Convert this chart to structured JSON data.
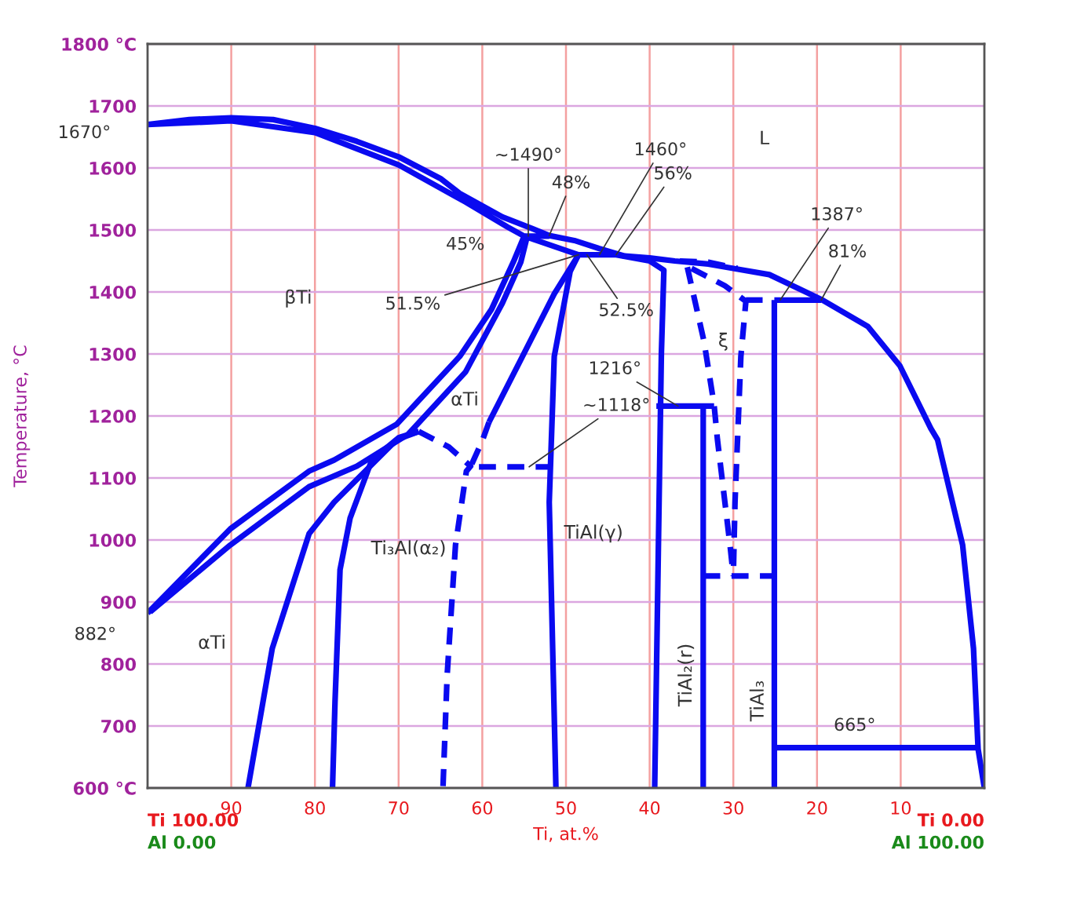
{
  "chart_data": {
    "type": "line",
    "xlabel": "Ti, at.%",
    "ylabel": "Temperature, °C",
    "xlim": [
      100,
      0
    ],
    "xticks": [
      90,
      80,
      70,
      60,
      50,
      40,
      30,
      20,
      10
    ],
    "ylim": [
      600,
      1800
    ],
    "yticks": [
      {
        "value": 600,
        "label": "600 °C"
      },
      700,
      800,
      900,
      1000,
      1100,
      1200,
      1300,
      1400,
      1500,
      1600,
      1700,
      {
        "value": 1800,
        "label": "1800 °C"
      }
    ],
    "grid": true,
    "legend": false,
    "marker": "none",
    "series": [
      {
        "color": "#0a0af0",
        "line_style": "solid",
        "x": [
          52,
          55,
          57,
          62,
          70,
          80,
          90,
          100,
          95,
          90,
          85,
          80,
          75,
          70,
          65,
          62.7,
          57.6,
          54,
          52,
          49,
          46,
          43,
          40,
          37,
          33,
          30,
          25.7,
          19.5,
          13.9,
          10.1,
          6.4,
          5.6,
          2.6,
          1.3,
          0.75,
          0
        ],
        "values": [
          1490,
          1490,
          1505,
          1545,
          1605,
          1657,
          1676,
          1670,
          1678,
          1681,
          1678,
          1664,
          1643,
          1618,
          1583,
          1559,
          1521,
          1502,
          1491,
          1483,
          1470,
          1458,
          1455,
          1450,
          1445,
          1438,
          1428,
          1388,
          1344,
          1281,
          1180,
          1162,
          992,
          825,
          663,
          600
        ]
      },
      {
        "color": "#0a0af0",
        "line_style": "solid",
        "x": [
          55,
          48.5
        ],
        "values": [
          1490,
          1460
        ]
      },
      {
        "color": "#0a0af0",
        "line_style": "solid",
        "x": [
          100,
          90.1,
          80.7,
          77.7,
          70.2,
          62.7,
          58.9,
          56.3,
          55
        ],
        "values": [
          882,
          1018,
          1111,
          1129,
          1187,
          1296,
          1372,
          1448,
          1490
        ]
      },
      {
        "color": "#0a0af0",
        "line_style": "solid",
        "x": [
          99.7,
          90.1,
          80.7,
          75,
          68.9,
          62,
          57.6,
          55.4,
          54.7
        ],
        "values": [
          884,
          992,
          1086,
          1119,
          1170,
          1271,
          1382,
          1448,
          1486
        ]
      },
      {
        "color": "#0a0af0",
        "line_style": "solid",
        "x": [
          67.6,
          70.2,
          77.7,
          80.7,
          85.1,
          88
        ],
        "values": [
          1175,
          1162,
          1061,
          1010,
          825,
          600
        ]
      },
      {
        "color": "#0a0af0",
        "line_style": "solid",
        "x": [
          67.6,
          70,
          73.2,
          75.8,
          77,
          77.6,
          77.9
        ],
        "values": [
          1175,
          1165,
          1129,
          1035,
          952,
          739,
          600
        ]
      },
      {
        "color": "#0a0af0",
        "line_style": "dashed",
        "x": [
          67.6,
          64,
          61.4,
          61.9,
          63.2,
          64.2,
          64.7
        ],
        "values": [
          1175,
          1150,
          1119,
          1111,
          992,
          782,
          600
        ]
      },
      {
        "color": "#0a0af0",
        "line_style": "dashed",
        "x": [
          59.2,
          60,
          61.4,
          52
        ],
        "values": [
          1190,
          1160,
          1118,
          1118
        ]
      },
      {
        "color": "#0a0af0",
        "line_style": "solid",
        "x": [
          59.2,
          55.2,
          51.4,
          48.5
        ],
        "values": [
          1190,
          1296,
          1397,
          1460
        ]
      },
      {
        "color": "#0a0af0",
        "line_style": "solid",
        "x": [
          51.2,
          52,
          51.4,
          49.5,
          48.5,
          44,
          40,
          38.3,
          38.6,
          39.4
        ],
        "values": [
          600,
          1061,
          1296,
          1433,
          1460,
          1460,
          1450,
          1435,
          1300,
          600
        ]
      },
      {
        "color": "#0a0af0",
        "line_style": "dashed",
        "x": [
          36.4,
          33,
          29.5
        ],
        "values": [
          1450,
          1448,
          1438
        ]
      },
      {
        "color": "#0a0af0",
        "line_style": "dashed",
        "x": [
          35.5,
          33.5,
          32.3,
          31.9,
          30.4,
          30
        ],
        "values": [
          1440,
          1320,
          1218,
          1162,
          992,
          942
        ]
      },
      {
        "color": "#0a0af0",
        "line_style": "dashed",
        "x": [
          35,
          31,
          28.5,
          29.1,
          29.8,
          30
        ],
        "values": [
          1438,
          1410,
          1385,
          1296,
          1061,
          942
        ]
      },
      {
        "color": "#0a0af0",
        "line_style": "dashed",
        "x": [
          33.6,
          25.1
        ],
        "values": [
          942,
          942
        ]
      },
      {
        "color": "#0a0af0",
        "line_style": "solid",
        "x": [
          39.2,
          32.3
        ],
        "values": [
          1216,
          1216
        ]
      },
      {
        "color": "#0a0af0",
        "line_style": "solid",
        "x": [
          33.6,
          33.6
        ],
        "values": [
          600,
          1216
        ]
      },
      {
        "color": "#0a0af0",
        "line_style": "solid",
        "x": [
          25.1,
          25.1
        ],
        "values": [
          600,
          1387
        ]
      },
      {
        "color": "#0a0af0",
        "line_style": "solid",
        "x": [
          25.1,
          19.5
        ],
        "values": [
          1387,
          1387
        ]
      },
      {
        "color": "#0a0af0",
        "line_style": "dashed",
        "x": [
          28.5,
          26.5
        ],
        "values": [
          1387,
          1387
        ]
      },
      {
        "color": "#0a0af0",
        "line_style": "solid",
        "x": [
          25.1,
          0.7
        ],
        "values": [
          665,
          665
        ]
      }
    ],
    "annotations": [
      "Ti 100.00",
      "Al 0.00",
      "Ti 0.00",
      "Al 100.00",
      "L",
      "βTi",
      "αTi",
      "Ti₃Al(α₂)",
      "TiAl(γ)",
      "αTi",
      "ξ",
      "TiAl₂(r)",
      "TiAl₃",
      {
        "text": "1670°",
        "x": 100,
        "y": 1670
      },
      {
        "text": "882°",
        "x": 100,
        "y": 882
      },
      {
        "text": "~1490°",
        "x": 54.5,
        "y": 1490
      },
      {
        "text": "48%",
        "x": 52,
        "y": 1491
      },
      {
        "text": "45%",
        "x": 55,
        "y": 1490
      },
      {
        "text": "1460°",
        "x": 46,
        "y": 1460
      },
      {
        "text": "56%",
        "x": 44,
        "y": 1460
      },
      {
        "text": "51.5%",
        "x": 48.5,
        "y": 1460
      },
      {
        "text": "52.5%",
        "x": 47.5,
        "y": 1460
      },
      {
        "text": "1387°",
        "x": 24.4,
        "y": 1387
      },
      {
        "text": "81%",
        "x": 19.5,
        "y": 1387
      },
      {
        "text": "1216°",
        "x": 36.6,
        "y": 1216
      },
      {
        "text": "~1118°",
        "x": 54.4,
        "y": 1118
      },
      {
        "text": "665°",
        "x": 15.5,
        "y": 665
      }
    ]
  }
}
